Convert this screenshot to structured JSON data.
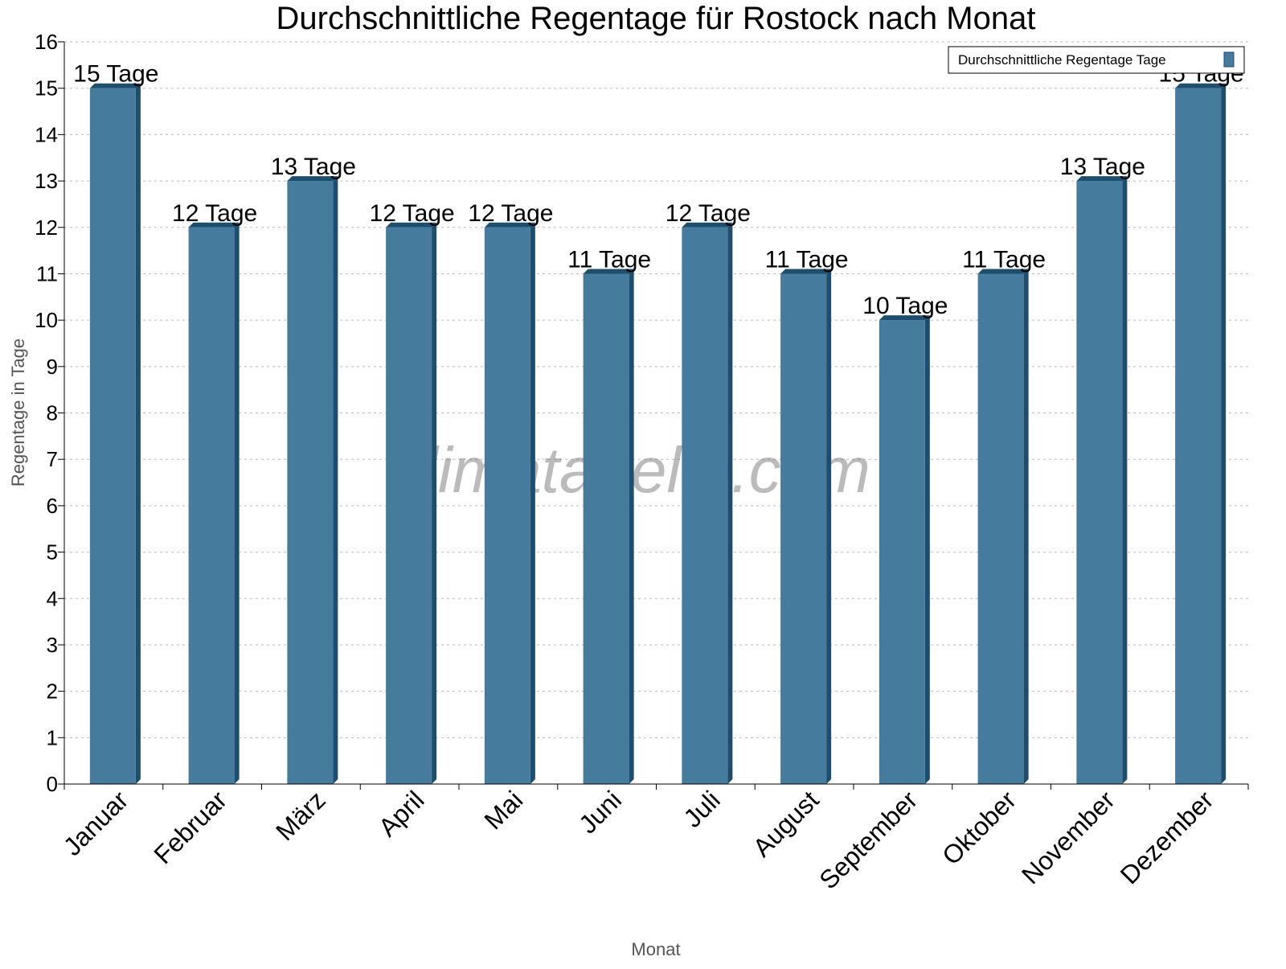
{
  "chart_data": {
    "type": "bar",
    "title": "Durchschnittliche Regentage für Rostock nach Monat",
    "xlabel": "Monat",
    "ylabel": "Regentage in Tage",
    "ylim": [
      0,
      16
    ],
    "yticks": [
      0,
      1,
      2,
      3,
      4,
      5,
      6,
      7,
      8,
      9,
      10,
      11,
      12,
      13,
      14,
      15,
      16
    ],
    "grid": true,
    "legend_position": "top-right",
    "categories": [
      "Januar",
      "Februar",
      "März",
      "April",
      "Mai",
      "Juni",
      "Juli",
      "August",
      "September",
      "Oktober",
      "November",
      "Dezember"
    ],
    "series": [
      {
        "name": "Durchschnittliche Regentage Tage",
        "values": [
          15,
          12,
          13,
          12,
          12,
          11,
          12,
          11,
          10,
          11,
          13,
          15
        ],
        "color": "#457b9d",
        "side_color": "#1d4e6e"
      }
    ],
    "data_labels": [
      "15 Tage",
      "12 Tage",
      "13 Tage",
      "12 Tage",
      "12 Tage",
      "11 Tage",
      "12 Tage",
      "11 Tage",
      "10 Tage",
      "11 Tage",
      "13 Tage",
      "15 Tage"
    ],
    "watermark": "klimatabelle.com"
  }
}
